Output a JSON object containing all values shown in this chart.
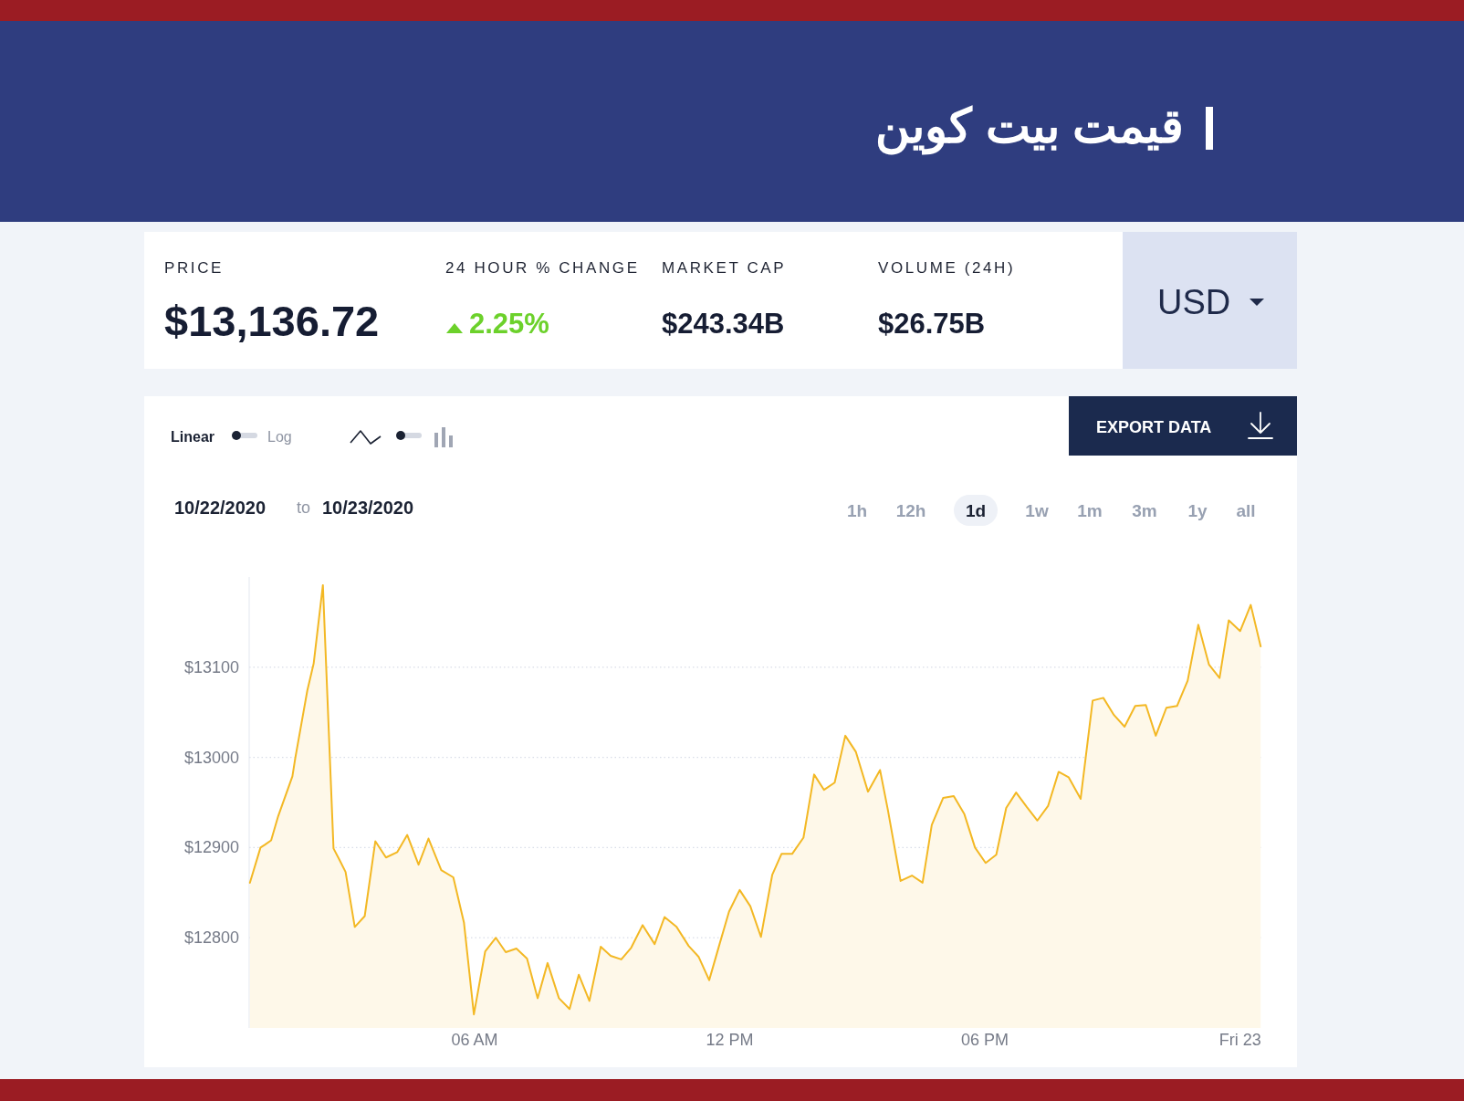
{
  "chart_data": {
    "type": "area",
    "title": "قیمت بیت کوین",
    "x": [
      "2020-10-22T00:43",
      "2020-10-22T00:58",
      "2020-10-22T01:04",
      "2020-10-22T01:13",
      "2020-10-22T01:23",
      "2020-10-22T01:43",
      "2020-10-22T01:47",
      "2020-10-22T02:04",
      "2020-10-22T02:13",
      "2020-10-22T02:26",
      "2020-10-22T02:41",
      "2020-10-22T02:49",
      "2020-10-22T02:58",
      "2020-10-22T03:11",
      "2020-10-22T03:25",
      "2020-10-22T03:40",
      "2020-10-22T03:55",
      "2020-10-22T04:11",
      "2020-10-22T04:25",
      "2020-10-22T04:41",
      "2020-10-22T04:55",
      "2020-10-22T05:13",
      "2020-10-22T05:30",
      "2020-10-22T05:45",
      "2020-10-22T05:59",
      "2020-10-22T06:15",
      "2020-10-22T06:30",
      "2020-10-22T06:44",
      "2020-10-22T06:59",
      "2020-10-22T07:14",
      "2020-10-22T07:29",
      "2020-10-22T07:43",
      "2020-10-22T07:59",
      "2020-10-22T08:14",
      "2020-10-22T08:27",
      "2020-10-22T08:42",
      "2020-10-22T08:58",
      "2020-10-22T09:12",
      "2020-10-22T09:27",
      "2020-10-22T09:41",
      "2020-10-22T09:57",
      "2020-10-22T10:14",
      "2020-10-22T10:28",
      "2020-10-22T10:45",
      "2020-10-22T11:02",
      "2020-10-22T11:16",
      "2020-10-22T11:31",
      "2020-10-22T11:46",
      "2020-10-22T11:59",
      "2020-10-22T12:14",
      "2020-10-22T12:29",
      "2020-10-22T12:44",
      "2020-10-22T13:00",
      "2020-10-22T13:13",
      "2020-10-22T13:28",
      "2020-10-22T13:44",
      "2020-10-22T13:59",
      "2020-10-22T14:13",
      "2020-10-22T14:28",
      "2020-10-22T14:43",
      "2020-10-22T14:58",
      "2020-10-22T15:15",
      "2020-10-22T15:32",
      "2020-10-22T15:43",
      "2020-10-22T16:01",
      "2020-10-22T16:17",
      "2020-10-22T16:32",
      "2020-10-22T16:45",
      "2020-10-22T17:01",
      "2020-10-22T17:16",
      "2020-10-22T17:31",
      "2020-10-22T17:46",
      "2020-10-22T18:01",
      "2020-10-22T18:16",
      "2020-10-22T18:30",
      "2020-10-22T18:44",
      "2020-10-22T18:59",
      "2020-10-22T19:14",
      "2020-10-22T19:29",
      "2020-10-22T19:44",
      "2020-10-22T19:58",
      "2020-10-22T20:15",
      "2020-10-22T20:32",
      "2020-10-22T20:47",
      "2020-10-22T21:02",
      "2020-10-22T21:17",
      "2020-10-22T21:32",
      "2020-10-22T21:47",
      "2020-10-22T22:01",
      "2020-10-22T22:16",
      "2020-10-22T22:31",
      "2020-10-22T22:46",
      "2020-10-22T23:01",
      "2020-10-22T23:16",
      "2020-10-22T23:31",
      "2020-10-22T23:44",
      "2020-10-23T00:00",
      "2020-10-23T00:15",
      "2020-10-23T00:29"
    ],
    "values": [
      12861,
      12900,
      12903,
      12908,
      12935,
      12979,
      12999,
      13074,
      13104,
      13191,
      12899,
      12887,
      12873,
      12812,
      12824,
      12907,
      12889,
      12895,
      12914,
      12881,
      12910,
      12875,
      12867,
      12817,
      12715,
      12785,
      12800,
      12784,
      12788,
      12777,
      12733,
      12772,
      12733,
      12721,
      12759,
      12730,
      12790,
      12780,
      12776,
      12789,
      12814,
      12793,
      12823,
      12812,
      12791,
      12779,
      12753,
      12794,
      12829,
      12853,
      12835,
      12801,
      12870,
      12893,
      12893,
      12911,
      12981,
      12964,
      12972,
      13024,
      13006,
      12962,
      12986,
      12942,
      12863,
      12869,
      12861,
      12925,
      12955,
      12957,
      12937,
      12900,
      12883,
      12892,
      12944,
      12961,
      12945,
      12930,
      12946,
      12984,
      12978,
      12954,
      13063,
      13066,
      13047,
      13034,
      13057,
      13058,
      13024,
      13055,
      13057,
      13085,
      13147,
      13103,
      13088,
      13152,
      13140,
      13169,
      13123
    ],
    "color": "#f3b824",
    "xlim": [
      "2020-10-22T00:42",
      "2020-10-23T00:30"
    ],
    "xticks": [
      {
        "value": "2020-10-22T06:00",
        "label": "06 AM"
      },
      {
        "value": "2020-10-22T12:00",
        "label": "12 PM"
      },
      {
        "value": "2020-10-22T18:00",
        "label": "06 PM"
      },
      {
        "value": "2020-10-23T00:00",
        "label": "Fri 23"
      }
    ],
    "ylim": [
      12700,
      13200
    ],
    "yticks": [
      {
        "value": 12800,
        "label": "$12800"
      },
      {
        "value": 12900,
        "label": "$12900"
      },
      {
        "value": 13000,
        "label": "$13000"
      },
      {
        "value": 13100,
        "label": "$13100"
      }
    ],
    "grid": "y",
    "annotations": [
      "PRICE",
      "$13,136.72",
      "24 HOUR % CHANGE",
      "2.25%",
      "MARKET CAP",
      "$243.34B",
      "VOLUME (24H)",
      "$26.75B",
      "USD",
      "Linear",
      "Log",
      "EXPORT DATA",
      "10/22/2020",
      "to",
      "10/23/2020",
      "1h",
      "12h",
      "1d",
      "1w",
      "1m",
      "3m",
      "1y",
      "all"
    ]
  }
}
